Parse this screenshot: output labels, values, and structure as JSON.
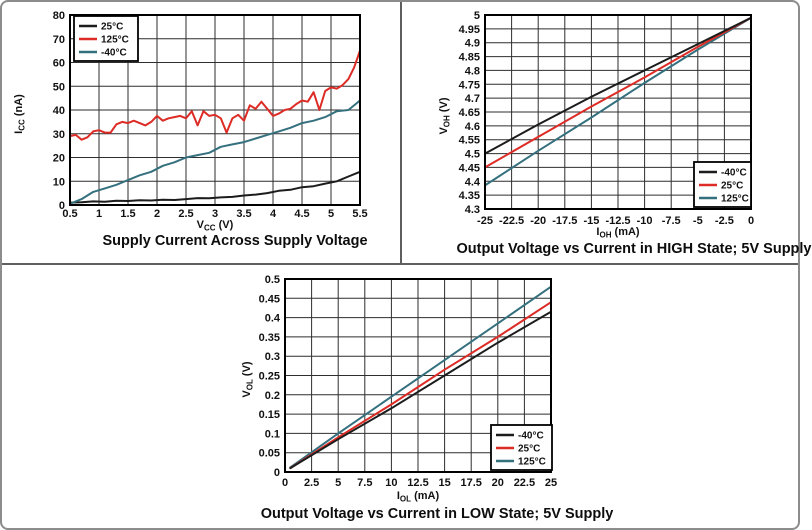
{
  "figure": {
    "description": "Three temperature-characterization line charts",
    "series_colors": {
      "black": "#1c1c1c",
      "red": "#dd2b25",
      "teal": "#35707e"
    }
  },
  "chart_data": [
    {
      "id": "supply",
      "type": "line",
      "title": "Supply Current Across Supply Voltage",
      "xlabel": "VCC (V)",
      "xlabel_parts": [
        {
          "t": "V"
        },
        {
          "t": "CC",
          "sub": true
        },
        {
          "t": " (V)"
        }
      ],
      "ylabel": "ICC (nA)",
      "ylabel_parts": [
        {
          "t": "I"
        },
        {
          "t": "CC",
          "sub": true
        },
        {
          "t": " (nA)"
        }
      ],
      "xlim": [
        0.5,
        5.5
      ],
      "ylim": [
        0,
        80
      ],
      "x_ticks": [
        "0.5",
        "1",
        "1.5",
        "2",
        "2.5",
        "3",
        "3.5",
        "4",
        "4.5",
        "5",
        "5.5"
      ],
      "y_ticks": [
        "0",
        "10",
        "20",
        "30",
        "40",
        "50",
        "60",
        "70",
        "80"
      ],
      "grid": true,
      "legend_position": "top-left",
      "legend": [
        {
          "label": "25°C",
          "color": "#1c1c1c"
        },
        {
          "label": "125°C",
          "color": "#dd2b25"
        },
        {
          "label": "-40°C",
          "color": "#35707e"
        }
      ],
      "series": [
        {
          "name": "25°C",
          "color": "#1c1c1c",
          "x_start": 0.5,
          "x_step": 0.2,
          "values": [
            1,
            1.2,
            1.5,
            1.4,
            1.8,
            1.7,
            2,
            1.9,
            2.2,
            2.1,
            2.5,
            2.9,
            2.8,
            3.2,
            3.4,
            4,
            4.4,
            5,
            6,
            6.4,
            7.5,
            7.9,
            9,
            10,
            12,
            14
          ]
        },
        {
          "name": "125°C",
          "color": "#dd2b25",
          "x_start": 0.5,
          "x_step": 0.1,
          "values": [
            29,
            29.5,
            27.5,
            28.5,
            31,
            31.5,
            30.5,
            30.5,
            34,
            35,
            34.5,
            35.5,
            34.5,
            33.5,
            35,
            37.5,
            35.5,
            36.5,
            37,
            37.5,
            36.5,
            39.5,
            33.5,
            39.5,
            37.5,
            38,
            36.5,
            30.5,
            36.5,
            38,
            35.5,
            42,
            40.5,
            43.5,
            40.5,
            37.5,
            38.5,
            40,
            40.5,
            42.5,
            44,
            43.5,
            47.5,
            40,
            48,
            49.5,
            49,
            50.5,
            53,
            58,
            65
          ]
        },
        {
          "name": "-40°C",
          "color": "#35707e",
          "x_start": 0.5,
          "x_step": 0.2,
          "values": [
            0.5,
            2.5,
            5.5,
            7,
            8.5,
            10.5,
            12.5,
            14,
            16.5,
            18,
            20,
            21,
            22,
            24.5,
            25.5,
            26.5,
            28,
            29.5,
            31,
            32.5,
            34.5,
            35.5,
            37,
            39.5,
            40,
            44
          ]
        }
      ]
    },
    {
      "id": "voh",
      "type": "line",
      "title": "Output Voltage vs Current in HIGH State; 5V Supply",
      "xlabel": "IOH (mA)",
      "xlabel_parts": [
        {
          "t": "I"
        },
        {
          "t": "OH",
          "sub": true
        },
        {
          "t": " (mA)"
        }
      ],
      "ylabel": "VOH (V)",
      "ylabel_parts": [
        {
          "t": "V"
        },
        {
          "t": "OH",
          "sub": true
        },
        {
          "t": " (V)"
        }
      ],
      "xlim": [
        -25,
        0
      ],
      "ylim": [
        4.3,
        5
      ],
      "x_ticks": [
        "-25",
        "-22.5",
        "-20",
        "-17.5",
        "-15",
        "-12.5",
        "-10",
        "-7.5",
        "-5",
        "-2.5",
        "0"
      ],
      "y_ticks": [
        "4.3",
        "4.35",
        "4.4",
        "4.45",
        "4.5",
        "4.55",
        "4.6",
        "4.65",
        "4.7",
        "4.75",
        "4.8",
        "4.85",
        "4.9",
        "4.95",
        "5"
      ],
      "grid": true,
      "legend_position": "bottom-right",
      "legend": [
        {
          "label": "-40°C",
          "color": "#1c1c1c"
        },
        {
          "label": "25°C",
          "color": "#dd2b25"
        },
        {
          "label": "125°C",
          "color": "#35707e"
        }
      ],
      "series": [
        {
          "name": "125°C",
          "color": "#35707e",
          "x": [
            -25,
            -20,
            -15,
            -10,
            -5,
            0
          ],
          "values": [
            4.385,
            4.51,
            4.63,
            4.755,
            4.875,
            4.99
          ]
        },
        {
          "name": "25°C",
          "color": "#dd2b25",
          "x": [
            -25,
            -20,
            -15,
            -10,
            -5,
            0
          ],
          "values": [
            4.45,
            4.56,
            4.67,
            4.775,
            4.885,
            4.99
          ]
        },
        {
          "name": "-40°C",
          "color": "#1c1c1c",
          "x": [
            -25,
            -20,
            -15,
            -10,
            -5,
            0
          ],
          "values": [
            4.5,
            4.605,
            4.705,
            4.8,
            4.895,
            4.99
          ]
        }
      ]
    },
    {
      "id": "vol",
      "type": "line",
      "title": "Output Voltage vs Current in LOW State; 5V Supply",
      "xlabel": "IOL (mA)",
      "xlabel_parts": [
        {
          "t": "I"
        },
        {
          "t": "OL",
          "sub": true
        },
        {
          "t": " (mA)"
        }
      ],
      "ylabel": "VOL (V)",
      "ylabel_parts": [
        {
          "t": "V"
        },
        {
          "t": "OL",
          "sub": true
        },
        {
          "t": " (V)"
        }
      ],
      "xlim": [
        0,
        25
      ],
      "ylim": [
        0,
        0.5
      ],
      "x_ticks": [
        "0",
        "2.5",
        "5",
        "7.5",
        "10",
        "12.5",
        "15",
        "17.5",
        "20",
        "22.5",
        "25"
      ],
      "y_ticks": [
        "0",
        "0.05",
        "0.1",
        "0.15",
        "0.2",
        "0.25",
        "0.3",
        "0.35",
        "0.4",
        "0.45",
        "0.5"
      ],
      "grid": true,
      "legend_position": "bottom-right",
      "legend": [
        {
          "label": "-40°C",
          "color": "#1c1c1c"
        },
        {
          "label": "25°C",
          "color": "#dd2b25"
        },
        {
          "label": "125°C",
          "color": "#35707e"
        }
      ],
      "series": [
        {
          "name": "125°C",
          "color": "#35707e",
          "x": [
            0.5,
            5,
            10,
            15,
            20,
            25
          ],
          "values": [
            0.012,
            0.1,
            0.195,
            0.29,
            0.385,
            0.48
          ]
        },
        {
          "name": "25°C",
          "color": "#dd2b25",
          "x": [
            0.5,
            5,
            10,
            15,
            20,
            25
          ],
          "values": [
            0.01,
            0.09,
            0.175,
            0.265,
            0.35,
            0.44
          ]
        },
        {
          "name": "-40°C",
          "color": "#1c1c1c",
          "x": [
            0.5,
            5,
            10,
            15,
            20,
            25
          ],
          "values": [
            0.01,
            0.085,
            0.165,
            0.25,
            0.335,
            0.415
          ]
        }
      ]
    }
  ]
}
